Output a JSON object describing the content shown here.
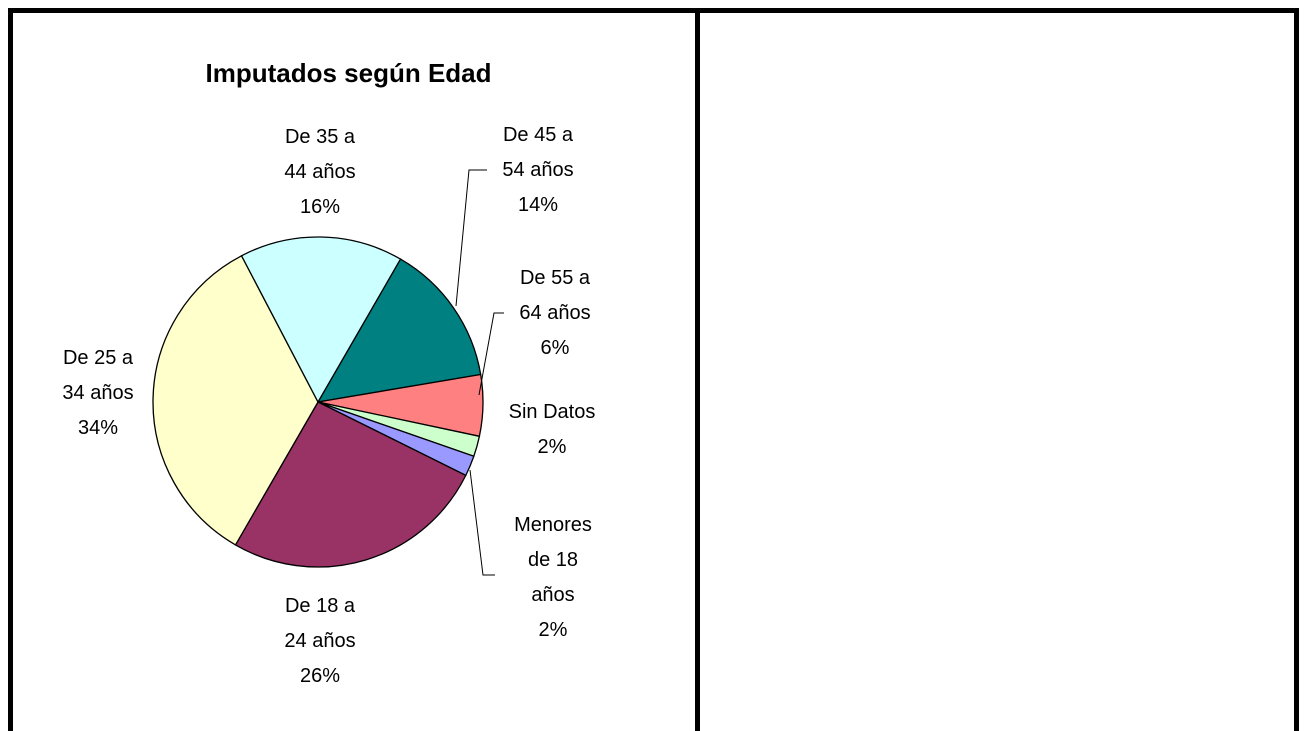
{
  "chart_data": {
    "type": "pie",
    "title": "Imputados según Edad",
    "categories": [
      "De 45 a 54 años",
      "De 55 a 64 años",
      "Sin Datos",
      "Menores de 18 años",
      "De 18 a 24 años",
      "De 25 a 34 años",
      "De 35 a 44 años"
    ],
    "values": [
      14,
      6,
      2,
      2,
      26,
      34,
      16
    ],
    "value_labels": [
      "14%",
      "6%",
      "2%",
      "2%",
      "26%",
      "34%",
      "16%"
    ],
    "colors": [
      "#008080",
      "#ff8080",
      "#ccffcc",
      "#9999ff",
      "#993366",
      "#ffffcc",
      "#ccffff"
    ],
    "startangle": 30
  }
}
